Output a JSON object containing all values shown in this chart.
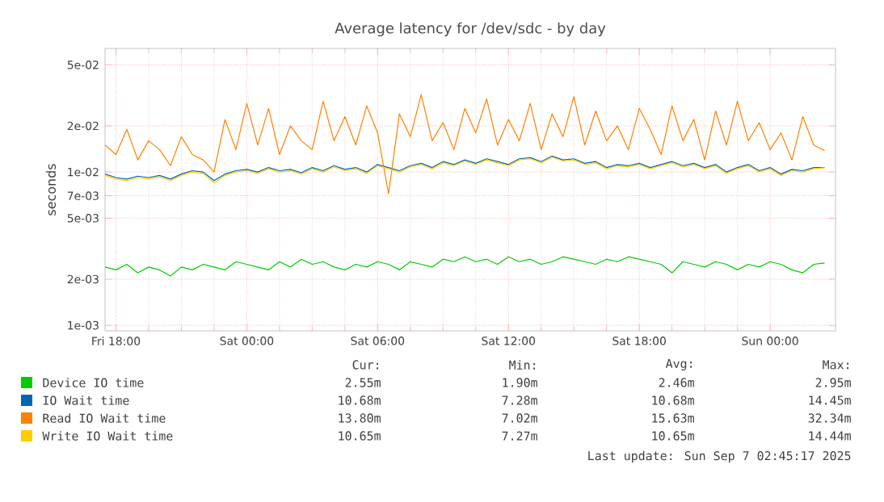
{
  "chart_data": {
    "type": "line",
    "title": "Average latency for /dev/sdc - by day",
    "ylabel": "seconds",
    "log": "y",
    "grid": true,
    "legend": "bottom",
    "x": [
      "2025-09-05T17:30",
      "2025-09-05T18:00",
      "2025-09-05T18:30",
      "2025-09-05T19:00",
      "2025-09-05T19:30",
      "2025-09-05T20:00",
      "2025-09-05T20:30",
      "2025-09-05T21:00",
      "2025-09-05T21:30",
      "2025-09-05T22:00",
      "2025-09-05T22:30",
      "2025-09-05T23:00",
      "2025-09-05T23:30",
      "2025-09-06T00:00",
      "2025-09-06T00:30",
      "2025-09-06T01:00",
      "2025-09-06T01:30",
      "2025-09-06T02:00",
      "2025-09-06T02:30",
      "2025-09-06T03:00",
      "2025-09-06T03:30",
      "2025-09-06T04:00",
      "2025-09-06T04:30",
      "2025-09-06T05:00",
      "2025-09-06T05:30",
      "2025-09-06T06:00",
      "2025-09-06T06:30",
      "2025-09-06T07:00",
      "2025-09-06T07:30",
      "2025-09-06T08:00",
      "2025-09-06T08:30",
      "2025-09-06T09:00",
      "2025-09-06T09:30",
      "2025-09-06T10:00",
      "2025-09-06T10:30",
      "2025-09-06T11:00",
      "2025-09-06T11:30",
      "2025-09-06T12:00",
      "2025-09-06T12:30",
      "2025-09-06T13:00",
      "2025-09-06T13:30",
      "2025-09-06T14:00",
      "2025-09-06T14:30",
      "2025-09-06T15:00",
      "2025-09-06T15:30",
      "2025-09-06T16:00",
      "2025-09-06T16:30",
      "2025-09-06T17:00",
      "2025-09-06T17:30",
      "2025-09-06T18:00",
      "2025-09-06T18:30",
      "2025-09-06T19:00",
      "2025-09-06T19:30",
      "2025-09-06T20:00",
      "2025-09-06T20:30",
      "2025-09-06T21:00",
      "2025-09-06T21:30",
      "2025-09-06T22:00",
      "2025-09-06T22:30",
      "2025-09-06T23:00",
      "2025-09-06T23:30",
      "2025-09-07T00:00",
      "2025-09-07T00:30",
      "2025-09-07T01:00",
      "2025-09-07T01:30",
      "2025-09-07T02:00",
      "2025-09-07T02:30"
    ],
    "xlim": [
      "2025-09-05T17:30",
      "2025-09-07T03:00"
    ],
    "xticks": [
      {
        "value": "2025-09-05T18:00",
        "label": "Fri 18:00"
      },
      {
        "value": "2025-09-06T00:00",
        "label": "Sat 00:00"
      },
      {
        "value": "2025-09-06T06:00",
        "label": "Sat 06:00"
      },
      {
        "value": "2025-09-06T12:00",
        "label": "Sat 12:00"
      },
      {
        "value": "2025-09-06T18:00",
        "label": "Sat 18:00"
      },
      {
        "value": "2025-09-07T00:00",
        "label": "Sun 00:00"
      }
    ],
    "ylim": [
      0.00092,
      0.064
    ],
    "yticks": [
      {
        "value": 0.001,
        "label": "1e-03"
      },
      {
        "value": 0.002,
        "label": "2e-03"
      },
      {
        "value": 0.005,
        "label": "5e-03"
      },
      {
        "value": 0.007,
        "label": "7e-03"
      },
      {
        "value": 0.01,
        "label": "1e-02"
      },
      {
        "value": 0.02,
        "label": "2e-02"
      },
      {
        "value": 0.05,
        "label": "5e-02"
      }
    ],
    "series": [
      {
        "name": "Device IO time",
        "color": "#00cc00",
        "values": [
          0.0024,
          0.0023,
          0.0025,
          0.0022,
          0.0024,
          0.0023,
          0.0021,
          0.0024,
          0.0023,
          0.0025,
          0.0024,
          0.0023,
          0.0026,
          0.0025,
          0.0024,
          0.0023,
          0.0026,
          0.0024,
          0.0027,
          0.0025,
          0.0026,
          0.0024,
          0.0023,
          0.0025,
          0.0024,
          0.0026,
          0.0025,
          0.0023,
          0.0026,
          0.0025,
          0.0024,
          0.0027,
          0.0026,
          0.0028,
          0.0026,
          0.0027,
          0.0025,
          0.0028,
          0.0026,
          0.0027,
          0.0025,
          0.0026,
          0.0028,
          0.0027,
          0.0026,
          0.0025,
          0.0027,
          0.0026,
          0.0028,
          0.0027,
          0.0026,
          0.0025,
          0.0022,
          0.0026,
          0.0025,
          0.0024,
          0.0026,
          0.0025,
          0.0023,
          0.0025,
          0.0024,
          0.0026,
          0.0025,
          0.0023,
          0.0022,
          0.0025,
          0.00255
        ]
      },
      {
        "name": "IO Wait time",
        "color": "#0066b3",
        "values": [
          0.0097,
          0.0092,
          0.009,
          0.0094,
          0.0092,
          0.0095,
          0.009,
          0.0097,
          0.0102,
          0.01,
          0.0088,
          0.0097,
          0.0102,
          0.0104,
          0.01,
          0.0107,
          0.0102,
          0.0104,
          0.0099,
          0.0107,
          0.0102,
          0.011,
          0.0104,
          0.0107,
          0.01,
          0.0112,
          0.0107,
          0.0102,
          0.011,
          0.0114,
          0.0107,
          0.0117,
          0.0112,
          0.012,
          0.0114,
          0.0122,
          0.0117,
          0.0112,
          0.0122,
          0.0124,
          0.0117,
          0.0127,
          0.012,
          0.0122,
          0.0114,
          0.0117,
          0.0107,
          0.0112,
          0.011,
          0.0114,
          0.0107,
          0.0112,
          0.0117,
          0.011,
          0.0114,
          0.0107,
          0.0112,
          0.01,
          0.0107,
          0.0112,
          0.0102,
          0.0107,
          0.0097,
          0.0104,
          0.0102,
          0.0107,
          0.01068
        ]
      },
      {
        "name": "Read IO Wait time",
        "color": "#ff8000",
        "values": [
          0.015,
          0.013,
          0.019,
          0.012,
          0.016,
          0.014,
          0.011,
          0.017,
          0.013,
          0.012,
          0.01,
          0.022,
          0.014,
          0.028,
          0.015,
          0.026,
          0.013,
          0.02,
          0.016,
          0.014,
          0.029,
          0.016,
          0.023,
          0.015,
          0.027,
          0.018,
          0.0072,
          0.024,
          0.017,
          0.032,
          0.016,
          0.021,
          0.014,
          0.026,
          0.018,
          0.03,
          0.015,
          0.022,
          0.016,
          0.028,
          0.014,
          0.024,
          0.017,
          0.031,
          0.015,
          0.025,
          0.016,
          0.02,
          0.014,
          0.026,
          0.019,
          0.013,
          0.027,
          0.016,
          0.022,
          0.012,
          0.025,
          0.015,
          0.029,
          0.016,
          0.021,
          0.014,
          0.018,
          0.012,
          0.023,
          0.015,
          0.0138
        ]
      },
      {
        "name": "Write IO Wait time",
        "color": "#ffcc00",
        "values": [
          0.0095,
          0.009,
          0.0088,
          0.0092,
          0.009,
          0.0093,
          0.0088,
          0.0095,
          0.01,
          0.0098,
          0.0085,
          0.0095,
          0.01,
          0.0102,
          0.0098,
          0.0105,
          0.01,
          0.0102,
          0.0097,
          0.0105,
          0.01,
          0.0108,
          0.0102,
          0.0105,
          0.0098,
          0.011,
          0.0105,
          0.01,
          0.0108,
          0.0112,
          0.0105,
          0.0115,
          0.011,
          0.0118,
          0.0112,
          0.012,
          0.0115,
          0.011,
          0.012,
          0.0122,
          0.0115,
          0.0125,
          0.0118,
          0.012,
          0.0112,
          0.0115,
          0.0105,
          0.011,
          0.0108,
          0.0112,
          0.0105,
          0.011,
          0.0115,
          0.0108,
          0.0112,
          0.0105,
          0.011,
          0.0098,
          0.0105,
          0.011,
          0.01,
          0.0105,
          0.0095,
          0.0102,
          0.01,
          0.0105,
          0.01065
        ]
      }
    ],
    "annotations": [
      "Cur:",
      "Min:",
      "Avg:",
      "Max:",
      "2.55m",
      "1.90m",
      "2.46m",
      "2.95m",
      "10.68m",
      "7.28m",
      "10.68m",
      "14.45m",
      "13.80m",
      "7.02m",
      "15.63m",
      "32.34m",
      "10.65m",
      "7.27m",
      "10.65m",
      "14.44m",
      "Last update: Sun Sep  7 02:45:17 2025"
    ]
  }
}
